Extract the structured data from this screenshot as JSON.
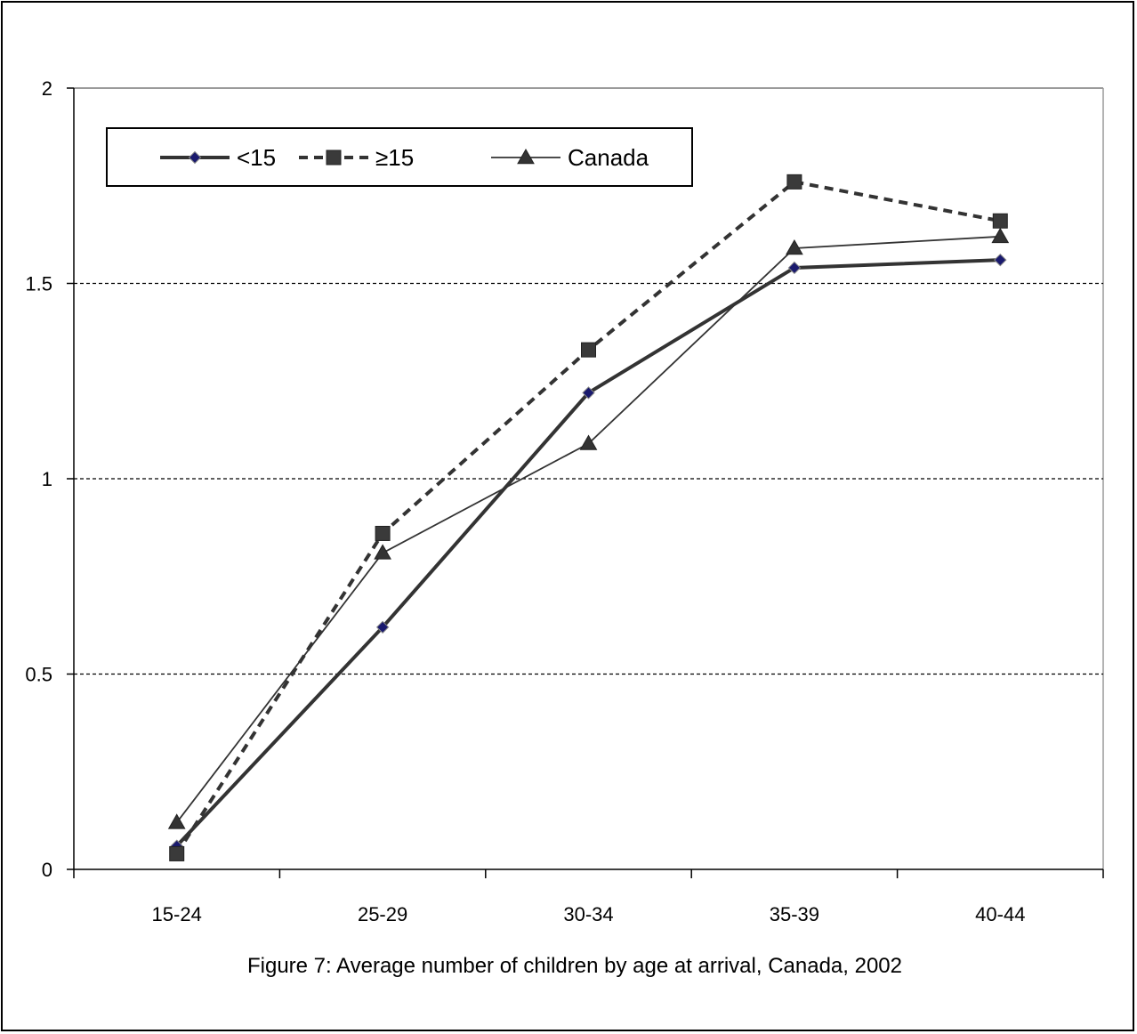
{
  "chart_data": {
    "type": "line",
    "title": "",
    "caption": "Figure 7: Average number of children by age at arrival, Canada, 2002",
    "xlabel": "",
    "ylabel": "",
    "categories": [
      "15-24",
      "25-29",
      "30-34",
      "35-39",
      "40-44"
    ],
    "ylim": [
      0,
      2
    ],
    "yticks": [
      "0",
      "0.5",
      "1",
      "1.5",
      "2"
    ],
    "grid": true,
    "legend_position": "top-left",
    "series": [
      {
        "name": "<15",
        "values": [
          0.06,
          0.62,
          1.22,
          1.54,
          1.56
        ],
        "color": "#333333",
        "marker": "diamond",
        "marker_color": "#1a1a6e",
        "dash": "solid",
        "weight": "thick"
      },
      {
        "name": "≥15",
        "values": [
          0.04,
          0.86,
          1.33,
          1.76,
          1.66
        ],
        "color": "#333333",
        "marker": "square",
        "marker_color": "#3a3a3a",
        "dash": "dashed",
        "weight": "thick"
      },
      {
        "name": "Canada",
        "values": [
          0.12,
          0.81,
          1.09,
          1.59,
          1.62
        ],
        "color": "#333333",
        "marker": "triangle",
        "marker_color": "#333333",
        "dash": "solid",
        "weight": "thin"
      }
    ]
  }
}
